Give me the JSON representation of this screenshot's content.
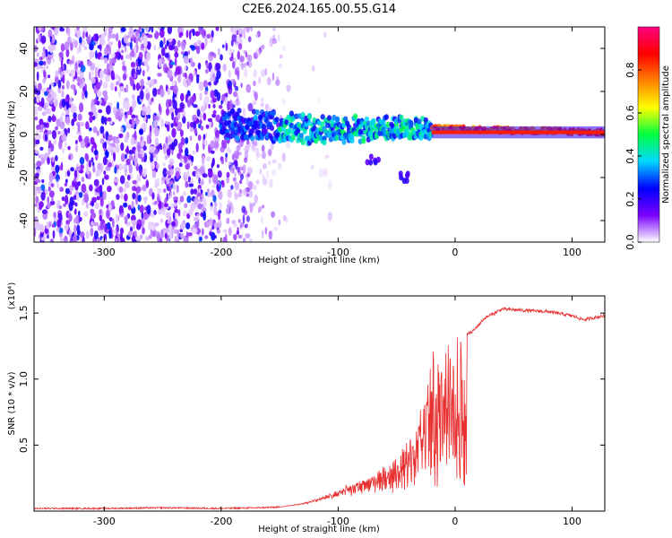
{
  "title": "C2E6.2024.165.00.55.G14",
  "chart_data": [
    {
      "id": "spectrogram",
      "type": "heatmap",
      "xlabel": "Height of straight line (km)",
      "ylabel": "Frequency (Hz)",
      "xlim": [
        -360,
        128
      ],
      "ylim": [
        -50,
        50
      ],
      "xticks": [
        -300,
        -200,
        -100,
        0,
        100
      ],
      "xtick_labels": [
        "-300",
        "-200",
        "-100",
        "0",
        "100"
      ],
      "yticks": [
        -40,
        -20,
        0,
        20,
        40
      ],
      "ytick_labels": [
        "-40",
        "-20",
        "0",
        "20",
        "40"
      ],
      "colorbar": {
        "label": "Normalized spectral amplitude",
        "range": [
          0,
          1
        ],
        "ticks": [
          0,
          0.2,
          0.4,
          0.6,
          0.8
        ],
        "tick_labels": [
          "0.0",
          "0.2",
          "0.4",
          "0.6",
          "0.8"
        ],
        "colors": [
          "#ffffff",
          "#7a00ff",
          "#0000ff",
          "#00d8ff",
          "#00ff40",
          "#ffff00",
          "#ff8000",
          "#ff0000",
          "#ff0080"
        ]
      },
      "description_trend": {
        "noise_region_x": [
          -360,
          -140
        ],
        "signal_start_x": -200,
        "signal_center_freq_start": 5,
        "signal_center_freq_end": 1,
        "tail_points": [
          [
            -70,
            -12
          ],
          [
            -45,
            -20
          ]
        ]
      }
    },
    {
      "id": "snr",
      "type": "line",
      "xlabel": "Height of straight line (km)",
      "ylabel": "SNR (10 * v/v)",
      "yscale_note": "(x10⁴)",
      "xlim": [
        -360,
        128
      ],
      "ylim": [
        0,
        1.63
      ],
      "xticks": [
        -300,
        -200,
        -100,
        0,
        100
      ],
      "xtick_labels": [
        "-300",
        "-200",
        "-100",
        "0",
        "100"
      ],
      "yticks": [
        0.5,
        1.0,
        1.5
      ],
      "ytick_labels": [
        "0.5",
        "1.0",
        "1.5"
      ],
      "series_color": "#e83030",
      "series": [
        {
          "name": "SNR",
          "x": [
            -360,
            -300,
            -250,
            -200,
            -170,
            -150,
            -130,
            -115,
            -100,
            -85,
            -70,
            -55,
            -45,
            -35,
            -28,
            -22,
            -15,
            -8,
            0,
            8,
            15,
            25,
            40,
            60,
            80,
            100,
            110,
            128
          ],
          "values": [
            0.02,
            0.02,
            0.025,
            0.02,
            0.025,
            0.03,
            0.06,
            0.1,
            0.16,
            0.22,
            0.28,
            0.36,
            0.46,
            0.62,
            0.85,
            1.05,
            1.18,
            1.25,
            1.3,
            1.33,
            1.36,
            1.46,
            1.53,
            1.52,
            1.51,
            1.48,
            1.45,
            1.48
          ]
        }
      ]
    }
  ]
}
